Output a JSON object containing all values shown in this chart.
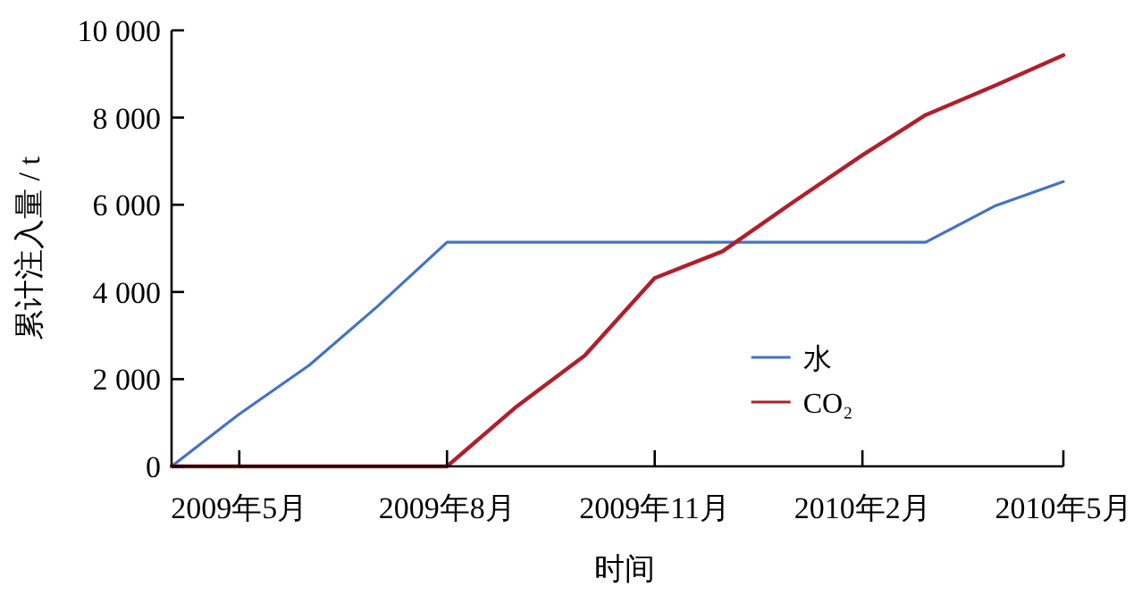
{
  "chart_data": {
    "type": "line",
    "xlabel": "时间",
    "ylabel": "累计注入量 / t",
    "x": [
      "2009-04-01",
      "2009-05-01",
      "2009-06-01",
      "2009-07-01",
      "2009-08-01",
      "2009-09-01",
      "2009-10-01",
      "2009-11-01",
      "2009-12-01",
      "2010-01-01",
      "2010-02-01",
      "2010-03-01",
      "2010-04-01",
      "2010-05-01"
    ],
    "series": [
      {
        "name": "水",
        "color": "#4472c4",
        "values": [
          0,
          1200,
          2320,
          3660,
          5140,
          5140,
          5140,
          5140,
          5140,
          5140,
          5140,
          5140,
          5980,
          6530
        ]
      },
      {
        "name": "CO₂",
        "color": "#b01f2a",
        "values": [
          0,
          0,
          0,
          0,
          0,
          1380,
          2540,
          4320,
          4930,
          6050,
          7140,
          8060,
          8740,
          9430
        ]
      }
    ],
    "xlim": [
      "2009-04-01",
      "2010-05-01"
    ],
    "xticks": [
      {
        "value": "2009-05-01",
        "label": "2009年5月"
      },
      {
        "value": "2009-08-01",
        "label": "2009年8月"
      },
      {
        "value": "2009-11-01",
        "label": "2009年11月"
      },
      {
        "value": "2010-02-01",
        "label": "2010年2月"
      },
      {
        "value": "2010-05-01",
        "label": "2010年5月"
      }
    ],
    "ylim": [
      0,
      10000
    ],
    "yticks": [
      0,
      {
        "value": 2000,
        "label": "2 000"
      },
      {
        "value": 4000,
        "label": "4 000"
      },
      {
        "value": 6000,
        "label": "6 000"
      },
      {
        "value": 8000,
        "label": "8 000"
      },
      {
        "value": 10000,
        "label": "10 000"
      }
    ],
    "legend": "bottom right"
  }
}
